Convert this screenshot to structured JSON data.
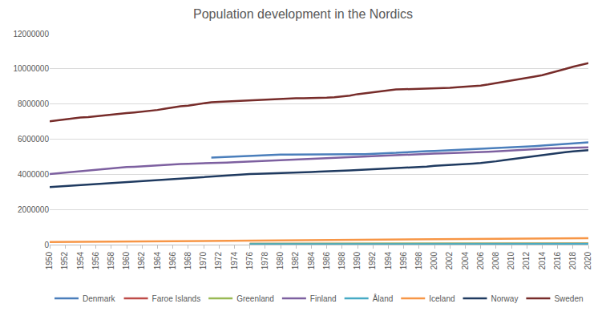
{
  "chart_data": {
    "type": "line",
    "title": "Population development in the Nordics",
    "x": [
      1950,
      1951,
      1952,
      1953,
      1954,
      1955,
      1956,
      1957,
      1958,
      1959,
      1960,
      1961,
      1962,
      1963,
      1964,
      1965,
      1966,
      1967,
      1968,
      1969,
      1970,
      1971,
      1972,
      1973,
      1974,
      1975,
      1976,
      1977,
      1978,
      1979,
      1980,
      1981,
      1982,
      1983,
      1984,
      1985,
      1986,
      1987,
      1988,
      1989,
      1990,
      1991,
      1992,
      1993,
      1994,
      1995,
      1996,
      1997,
      1998,
      1999,
      2000,
      2001,
      2002,
      2003,
      2004,
      2005,
      2006,
      2007,
      2008,
      2009,
      2010,
      2011,
      2012,
      2013,
      2014,
      2015,
      2016,
      2017,
      2018,
      2019,
      2020
    ],
    "xlim": [
      1950,
      2020
    ],
    "xticks": [
      1950,
      1952,
      1954,
      1956,
      1958,
      1960,
      1962,
      1964,
      1966,
      1968,
      1970,
      1972,
      1974,
      1976,
      1978,
      1980,
      1982,
      1984,
      1986,
      1988,
      1990,
      1992,
      1994,
      1996,
      1998,
      2000,
      2002,
      2004,
      2006,
      2008,
      2010,
      2012,
      2014,
      2016,
      2018,
      2020
    ],
    "ylim": [
      0,
      12000000
    ],
    "yticks": [
      0,
      2000000,
      4000000,
      6000000,
      8000000,
      10000000,
      12000000
    ],
    "grid": true,
    "legend": "bottom",
    "series": [
      {
        "name": "Denmark",
        "color": "#4a7ebb",
        "values": [
          null,
          null,
          null,
          null,
          null,
          null,
          null,
          null,
          null,
          null,
          null,
          null,
          null,
          null,
          null,
          null,
          null,
          null,
          null,
          null,
          null,
          4950000,
          4970000,
          5000000,
          5030000,
          5050000,
          5060000,
          5080000,
          5090000,
          5110000,
          5120000,
          5120000,
          5120000,
          5110000,
          5110000,
          5110000,
          5120000,
          5120000,
          5130000,
          5130000,
          5140000,
          5150000,
          5160000,
          5180000,
          5190000,
          5220000,
          5250000,
          5280000,
          5290000,
          5310000,
          5330000,
          5350000,
          5370000,
          5380000,
          5400000,
          5410000,
          5430000,
          5450000,
          5490000,
          5520000,
          5530000,
          5560000,
          5580000,
          5600000,
          5630000,
          5660000,
          5710000,
          5750000,
          5780000,
          5800000,
          5820000
        ]
      },
      {
        "name": "Faroe Islands",
        "color": "#be4b48",
        "values": [
          null,
          null,
          null,
          null,
          null,
          null,
          null,
          null,
          null,
          null,
          null,
          null,
          null,
          null,
          null,
          null,
          null,
          null,
          null,
          null,
          null,
          null,
          null,
          null,
          null,
          null,
          41000,
          41000,
          42000,
          42000,
          43000,
          43000,
          44000,
          44000,
          45000,
          45000,
          46000,
          47000,
          47000,
          48000,
          48000,
          47000,
          46000,
          45000,
          44000,
          44000,
          44000,
          44000,
          45000,
          45000,
          46000,
          46000,
          47000,
          48000,
          48000,
          48000,
          48000,
          48000,
          48000,
          48000,
          48000,
          48000,
          48000,
          48000,
          48000,
          49000,
          49000,
          50000,
          51000,
          52000,
          53000
        ]
      },
      {
        "name": "Greenland",
        "color": "#98b954",
        "values": [
          null,
          null,
          null,
          null,
          null,
          null,
          null,
          null,
          null,
          null,
          null,
          null,
          null,
          null,
          null,
          null,
          null,
          null,
          null,
          null,
          null,
          null,
          null,
          null,
          null,
          null,
          49000,
          50000,
          50000,
          50000,
          50000,
          51000,
          51000,
          52000,
          52000,
          53000,
          53000,
          54000,
          55000,
          55000,
          56000,
          55000,
          55000,
          55000,
          56000,
          56000,
          56000,
          56000,
          56000,
          56000,
          56000,
          56000,
          56000,
          57000,
          57000,
          57000,
          57000,
          56000,
          56000,
          56000,
          57000,
          57000,
          57000,
          56000,
          56000,
          56000,
          56000,
          56000,
          56000,
          56000,
          56000
        ]
      },
      {
        "name": "Finland",
        "color": "#7d60a0",
        "values": [
          4010000,
          4050000,
          4090000,
          4140000,
          4190000,
          4230000,
          4270000,
          4300000,
          4340000,
          4380000,
          4410000,
          4430000,
          4460000,
          4490000,
          4520000,
          4550000,
          4560000,
          4580000,
          4600000,
          4610000,
          4610000,
          4620000,
          4640000,
          4670000,
          4690000,
          4710000,
          4720000,
          4740000,
          4750000,
          4770000,
          4780000,
          4800000,
          4830000,
          4860000,
          4880000,
          4910000,
          4920000,
          4940000,
          4950000,
          4960000,
          4990000,
          5010000,
          5040000,
          5070000,
          5090000,
          5110000,
          5130000,
          5140000,
          5150000,
          5170000,
          5180000,
          5190000,
          5200000,
          5210000,
          5220000,
          5240000,
          5260000,
          5280000,
          5300000,
          5330000,
          5350000,
          5380000,
          5400000,
          5430000,
          5450000,
          5470000,
          5490000,
          5500000,
          5510000,
          5520000,
          5530000
        ]
      },
      {
        "name": "Åland",
        "color": "#46aac5",
        "values": [
          null,
          null,
          null,
          null,
          null,
          null,
          null,
          null,
          null,
          null,
          null,
          null,
          null,
          null,
          null,
          null,
          null,
          null,
          null,
          null,
          null,
          null,
          null,
          null,
          null,
          null,
          22000,
          22000,
          23000,
          23000,
          23000,
          23000,
          23000,
          23000,
          24000,
          24000,
          24000,
          24000,
          24000,
          24000,
          25000,
          25000,
          25000,
          25000,
          25000,
          25000,
          25000,
          26000,
          26000,
          26000,
          26000,
          26000,
          26000,
          26000,
          26000,
          27000,
          27000,
          27000,
          27000,
          27000,
          28000,
          28000,
          28000,
          29000,
          29000,
          29000,
          29000,
          29000,
          30000,
          30000,
          30000
        ]
      },
      {
        "name": "Iceland",
        "color": "#f79646",
        "values": [
          143000,
          146000,
          148000,
          151000,
          155000,
          158000,
          162000,
          165000,
          168000,
          172000,
          176000,
          179000,
          182000,
          185000,
          188000,
          192000,
          195000,
          197000,
          200000,
          203000,
          204000,
          205000,
          208000,
          211000,
          214000,
          217000,
          219000,
          221000,
          223000,
          225000,
          227000,
          230000,
          233000,
          236000,
          238000,
          240000,
          242000,
          244000,
          249000,
          252000,
          254000,
          258000,
          261000,
          263000,
          265000,
          267000,
          268000,
          271000,
          274000,
          278000,
          281000,
          284000,
          287000,
          288000,
          292000,
          296000,
          304000,
          311000,
          319000,
          319000,
          318000,
          319000,
          320000,
          322000,
          326000,
          330000,
          334000,
          340000,
          348000,
          356000,
          366000
        ]
      },
      {
        "name": "Norway",
        "color": "#1f3a60",
        "values": [
          3270000,
          3300000,
          3330000,
          3360000,
          3390000,
          3420000,
          3450000,
          3480000,
          3510000,
          3540000,
          3570000,
          3590000,
          3620000,
          3650000,
          3670000,
          3700000,
          3720000,
          3750000,
          3780000,
          3810000,
          3860000,
          3890000,
          3920000,
          3950000,
          3970000,
          3990000,
          4010000,
          4030000,
          4040000,
          4060000,
          4080000,
          4090000,
          4100000,
          4120000,
          4130000,
          4150000,
          4160000,
          4180000,
          4200000,
          4220000,
          4240000,
          4260000,
          4270000,
          4300000,
          4320000,
          4350000,
          4370000,
          4390000,
          4420000,
          4440000,
          4480000,
          4500000,
          4520000,
          4550000,
          4580000,
          4610000,
          4640000,
          4680000,
          4740000,
          4800000,
          4860000,
          4920000,
          4990000,
          5050000,
          5110000,
          5170000,
          5210000,
          5260000,
          5300000,
          5330000,
          5370000
        ]
      },
      {
        "name": "Sweden",
        "color": "#772c2a",
        "values": [
          7010000,
          7070000,
          7130000,
          7190000,
          7230000,
          7260000,
          7310000,
          7360000,
          7410000,
          7440000,
          7480000,
          7520000,
          7560000,
          7600000,
          7660000,
          7730000,
          7810000,
          7870000,
          7910000,
          7970000,
          8040000,
          8100000,
          8120000,
          8140000,
          8160000,
          8190000,
          8220000,
          8250000,
          8270000,
          8290000,
          8310000,
          8320000,
          8330000,
          8330000,
          8330000,
          8340000,
          8360000,
          8380000,
          8420000,
          8480000,
          8560000,
          8620000,
          8670000,
          8720000,
          8780000,
          8830000,
          8840000,
          8850000,
          8850000,
          8860000,
          8870000,
          8900000,
          8920000,
          8950000,
          8980000,
          9010000,
          9050000,
          9110000,
          9180000,
          9260000,
          9340000,
          9420000,
          9480000,
          9560000,
          9640000,
          9750000,
          9850000,
          9990000,
          10120000,
          10230000,
          10330000
        ]
      }
    ]
  }
}
